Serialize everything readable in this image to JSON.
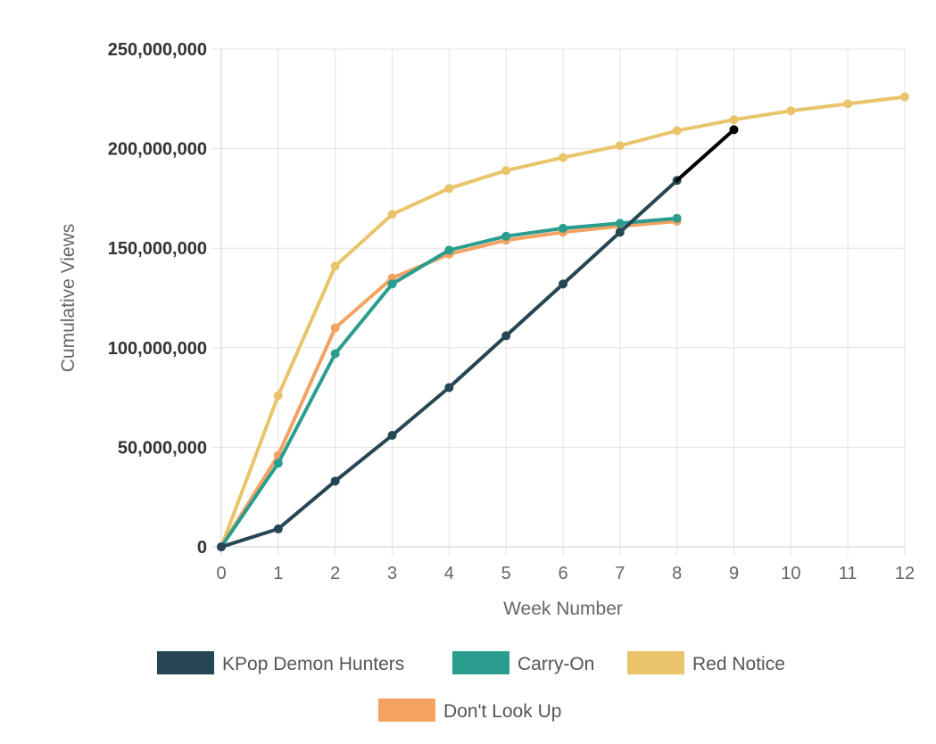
{
  "chart_data": {
    "type": "line",
    "xlabel": "Week Number",
    "ylabel": "Cumulative Views",
    "xlim": [
      0,
      12
    ],
    "ylim": [
      0,
      250000000
    ],
    "x_ticks": [
      "0",
      "1",
      "2",
      "3",
      "4",
      "5",
      "6",
      "7",
      "8",
      "9",
      "10",
      "11",
      "12"
    ],
    "y_ticks": [
      {
        "value": 0,
        "label": "0"
      },
      {
        "value": 50000000,
        "label": "50,000,000"
      },
      {
        "value": 100000000,
        "label": "100,000,000"
      },
      {
        "value": 150000000,
        "label": "150,000,000"
      },
      {
        "value": 200000000,
        "label": "200,000,000"
      },
      {
        "value": 250000000,
        "label": "250,000,000"
      }
    ],
    "grid": true,
    "legend_position": "bottom",
    "series": [
      {
        "name": "KPop Demon Hunters",
        "color": "#264653",
        "x": [
          0,
          1,
          2,
          3,
          4,
          5,
          6,
          7,
          8
        ],
        "values": [
          0,
          9000000,
          33000000,
          56000000,
          80000000,
          106000000,
          132000000,
          158000000,
          184000000
        ]
      },
      {
        "name": "Carry-On",
        "color": "#2a9d8f",
        "x": [
          0,
          1,
          2,
          3,
          4,
          5,
          6,
          7,
          8
        ],
        "values": [
          0,
          42000000,
          97000000,
          132000000,
          149000000,
          156000000,
          160000000,
          162500000,
          165000000
        ]
      },
      {
        "name": "Red Notice",
        "color": "#e9c46a",
        "x": [
          0,
          1,
          2,
          3,
          4,
          5,
          6,
          7,
          8,
          9,
          10,
          11,
          12
        ],
        "values": [
          0,
          76000000,
          141000000,
          167000000,
          180000000,
          189000000,
          195500000,
          201500000,
          209000000,
          214500000,
          219000000,
          222500000,
          226000000
        ]
      },
      {
        "name": "Don't Look Up",
        "color": "#f4a261",
        "x": [
          0,
          1,
          2,
          3,
          4,
          5,
          6,
          7,
          8
        ],
        "values": [
          0,
          46000000,
          110000000,
          135000000,
          147000000,
          154000000,
          158000000,
          161000000,
          163500000
        ]
      }
    ],
    "annotations": [
      {
        "name": "KPop Demon Hunters extension",
        "color": "#000000",
        "x": [
          8,
          9
        ],
        "values": [
          184000000,
          209500000
        ]
      }
    ]
  }
}
